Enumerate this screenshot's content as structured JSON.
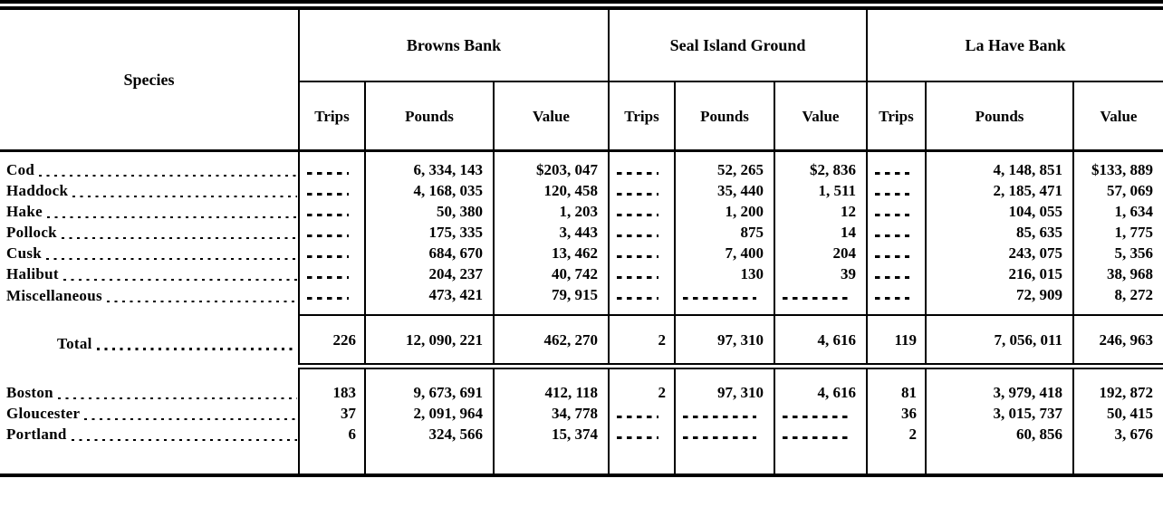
{
  "colors": {
    "ink": "#000000",
    "paper": "#ffffff"
  },
  "table": {
    "species_header": "Species",
    "groups": [
      {
        "label": "Browns Bank",
        "columns": [
          "Trips",
          "Pounds",
          "Value"
        ]
      },
      {
        "label": "Seal Island Ground",
        "columns": [
          "Trips",
          "Pounds",
          "Value"
        ]
      },
      {
        "label": "La Have Bank",
        "columns": [
          "Trips",
          "Pounds",
          "Value"
        ]
      }
    ],
    "species_rows": [
      {
        "name": "Cod",
        "cells": [
          "",
          "6, 334, 143",
          "$203, 047",
          "",
          "52, 265",
          "$2, 836",
          "",
          "4, 148, 851",
          "$133, 889"
        ]
      },
      {
        "name": "Haddock",
        "cells": [
          "",
          "4, 168, 035",
          "120, 458",
          "",
          "35, 440",
          "1, 511",
          "",
          "2, 185, 471",
          "57, 069"
        ]
      },
      {
        "name": "Hake",
        "cells": [
          "",
          "50, 380",
          "1, 203",
          "",
          "1, 200",
          "12",
          "",
          "104, 055",
          "1, 634"
        ]
      },
      {
        "name": "Pollock",
        "cells": [
          "",
          "175, 335",
          "3, 443",
          "",
          "875",
          "14",
          "",
          "85, 635",
          "1, 775"
        ]
      },
      {
        "name": "Cusk",
        "cells": [
          "",
          "684, 670",
          "13, 462",
          "",
          "7, 400",
          "204",
          "",
          "243, 075",
          "5, 356"
        ]
      },
      {
        "name": "Halibut",
        "cells": [
          "",
          "204, 237",
          "40, 742",
          "",
          "130",
          "39",
          "",
          "216, 015",
          "38, 968"
        ]
      },
      {
        "name": "Miscellaneous",
        "cells": [
          "",
          "473, 421",
          "79, 915",
          "",
          "",
          "",
          "",
          "72, 909",
          "8, 272"
        ]
      }
    ],
    "total_row": {
      "name": "Total",
      "cells": [
        "226",
        "12, 090, 221",
        "462, 270",
        "2",
        "97, 310",
        "4, 616",
        "119",
        "7, 056, 011",
        "246, 963"
      ]
    },
    "port_rows": [
      {
        "name": "Boston",
        "cells": [
          "183",
          "9, 673, 691",
          "412, 118",
          "2",
          "97, 310",
          "4, 616",
          "81",
          "3, 979, 418",
          "192, 872"
        ]
      },
      {
        "name": "Gloucester",
        "cells": [
          "37",
          "2, 091, 964",
          "34, 778",
          "",
          "",
          "",
          "36",
          "3, 015, 737",
          "50, 415"
        ]
      },
      {
        "name": "Portland",
        "cells": [
          "6",
          "324, 566",
          "15, 374",
          "",
          "",
          "",
          "2",
          "60, 856",
          "3, 676"
        ]
      }
    ]
  }
}
